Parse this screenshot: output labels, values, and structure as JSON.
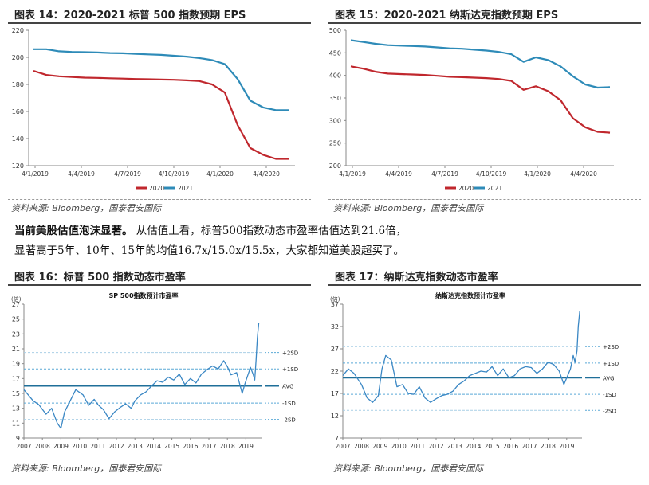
{
  "figures": {
    "f14": {
      "title": "图表 14：2020-2021 标普 500 指数预期 EPS",
      "source": "资料来源: Bloomberg，国泰君安国际"
    },
    "f15": {
      "title": "图表 15：2020-2021 纳斯达克指数预期 EPS",
      "source": "资料来源: Bloomberg，国泰君安国际"
    },
    "f16": {
      "title": "图表 16：标普 500 指数动态市盈率",
      "source": "资料来源: Bloomberg，国泰君安国际"
    },
    "f17": {
      "title": "图表 17：纳斯达克指数动态市盈率",
      "source": "资料来源: Bloomberg，国泰君安国际"
    }
  },
  "paragraph": {
    "lead": "当前美股估值泡沫显著。",
    "line1_rest": "从估值上看，标普500指数动态市盈率估值达到21.6倍，",
    "line2": "显著高于5年、10年、15年的均值16.7x/15.0x/15.5x，大家都知道美股超买了。"
  },
  "chart_data": [
    {
      "id": "f14",
      "type": "line",
      "x_ticks": [
        "4/1/2019",
        "4/4/2019",
        "4/7/2019",
        "4/10/2019",
        "4/1/2020",
        "4/4/2020"
      ],
      "y_ticks": [
        "120",
        "140",
        "160",
        "180",
        "200",
        "220"
      ],
      "ylim": [
        120,
        220
      ],
      "legend": [
        "2020",
        "2021"
      ],
      "series": [
        {
          "name": "2020",
          "color": "#c0272d",
          "values": [
            190,
            187,
            186,
            185.5,
            185,
            184.8,
            184.5,
            184.3,
            184,
            183.8,
            183.6,
            183.4,
            183,
            182.5,
            180,
            174,
            150,
            133,
            128,
            125,
            125
          ]
        },
        {
          "name": "2021",
          "color": "#2e8bb8",
          "values": [
            206,
            206,
            204.5,
            204,
            203.8,
            203.6,
            203.2,
            203,
            202.6,
            202.2,
            201.8,
            201.2,
            200.5,
            199.5,
            198,
            195,
            184,
            168,
            163,
            161,
            161
          ]
        }
      ]
    },
    {
      "id": "f15",
      "type": "line",
      "x_ticks": [
        "4/1/2019",
        "4/4/2019",
        "4/7/2019",
        "4/10/2019",
        "4/1/2020",
        "4/4/2020"
      ],
      "y_ticks": [
        "200",
        "250",
        "300",
        "350",
        "400",
        "450",
        "500"
      ],
      "ylim": [
        200,
        500
      ],
      "legend": [
        "2020",
        "2021"
      ],
      "series": [
        {
          "name": "2020",
          "color": "#c0272d",
          "values": [
            420,
            415,
            408,
            404,
            403,
            402,
            401,
            399,
            397,
            396,
            395,
            394,
            392,
            388,
            368,
            376,
            365,
            345,
            305,
            285,
            275,
            273
          ]
        },
        {
          "name": "2021",
          "color": "#2e8bb8",
          "values": [
            478,
            474,
            470,
            467,
            466,
            465,
            464,
            462,
            460,
            459,
            457,
            455,
            452,
            447,
            430,
            440,
            434,
            420,
            398,
            380,
            373,
            374
          ]
        }
      ]
    },
    {
      "id": "f16",
      "type": "line",
      "title": "SP 500指数预计市盈率",
      "unit": "(倍)",
      "x_ticks": [
        "2007",
        "2008",
        "2009",
        "2010",
        "2011",
        "2012",
        "2013",
        "2014",
        "2015",
        "2016",
        "2017",
        "2018",
        "2019"
      ],
      "y_ticks": [
        "9",
        "11",
        "13",
        "15",
        "17",
        "19",
        "21",
        "23",
        "25",
        "27"
      ],
      "ylim": [
        9,
        27
      ],
      "bands": {
        "plus2": 20.5,
        "plus1": 18.3,
        "avg": 16.0,
        "minus1": 13.7,
        "minus2": 11.5
      },
      "band_labels": [
        "+2SD",
        "+1SD",
        "AVG",
        "-1SD",
        "-2SD"
      ],
      "x": [
        2007.0,
        2007.5,
        2007.8,
        2008.2,
        2008.5,
        2008.8,
        2009.0,
        2009.2,
        2009.5,
        2009.8,
        2010.2,
        2010.5,
        2010.8,
        2011.0,
        2011.3,
        2011.6,
        2011.9,
        2012.2,
        2012.5,
        2012.8,
        2013.0,
        2013.3,
        2013.6,
        2013.9,
        2014.2,
        2014.5,
        2014.8,
        2015.1,
        2015.4,
        2015.7,
        2016.0,
        2016.3,
        2016.6,
        2016.9,
        2017.2,
        2017.5,
        2017.8,
        2018.0,
        2018.2,
        2018.5,
        2018.8,
        2018.95,
        2019.1,
        2019.25,
        2019.4,
        2019.48,
        2019.55,
        2019.62,
        2019.7
      ],
      "values": [
        15.5,
        14.0,
        13.5,
        12.2,
        13.0,
        11.0,
        10.3,
        12.5,
        14.0,
        15.5,
        14.8,
        13.4,
        14.2,
        13.5,
        12.8,
        11.6,
        12.5,
        13.1,
        13.6,
        13.0,
        14.0,
        14.8,
        15.2,
        16.0,
        16.7,
        16.5,
        17.2,
        16.8,
        17.6,
        16.2,
        17.0,
        16.4,
        17.6,
        18.2,
        18.7,
        18.3,
        19.4,
        18.6,
        17.5,
        17.8,
        15.0,
        16.3,
        17.4,
        18.5,
        17.5,
        16.8,
        19.5,
        22.5,
        24.5
      ]
    },
    {
      "id": "f17",
      "type": "line",
      "title": "纳斯达克指数预计市盈率",
      "unit": "(倍)",
      "x_ticks": [
        "2007",
        "2008",
        "2009",
        "2010",
        "2011",
        "2012",
        "2013",
        "2014",
        "2015",
        "2016",
        "2017",
        "2018",
        "2019"
      ],
      "y_ticks": [
        "7",
        "12",
        "17",
        "22",
        "27",
        "32",
        "37"
      ],
      "ylim": [
        7,
        37
      ],
      "bands": {
        "plus2": 27.5,
        "plus1": 23.8,
        "avg": 20.5,
        "minus1": 16.8,
        "minus2": 13.2
      },
      "band_labels": [
        "+2SD",
        "+1SD",
        "AVG",
        "-1SD",
        "-2SD"
      ],
      "x": [
        2007.0,
        2007.3,
        2007.6,
        2008.0,
        2008.3,
        2008.6,
        2008.9,
        2009.1,
        2009.3,
        2009.6,
        2009.9,
        2010.2,
        2010.5,
        2010.8,
        2011.1,
        2011.4,
        2011.7,
        2012.0,
        2012.3,
        2012.6,
        2012.9,
        2013.2,
        2013.5,
        2013.8,
        2014.1,
        2014.4,
        2014.7,
        2015.0,
        2015.3,
        2015.6,
        2015.9,
        2016.2,
        2016.5,
        2016.8,
        2017.1,
        2017.4,
        2017.7,
        2018.0,
        2018.3,
        2018.6,
        2018.85,
        2019.05,
        2019.2,
        2019.35,
        2019.45,
        2019.55,
        2019.62,
        2019.7
      ],
      "values": [
        21.0,
        22.5,
        21.5,
        19.0,
        16.0,
        15.0,
        16.5,
        22.5,
        25.5,
        24.5,
        18.5,
        19.0,
        17.0,
        16.8,
        18.5,
        16.0,
        15.0,
        15.8,
        16.5,
        16.8,
        17.5,
        19.0,
        19.8,
        21.0,
        21.5,
        22.0,
        21.8,
        23.0,
        21.0,
        22.5,
        20.5,
        21.0,
        22.5,
        23.0,
        22.8,
        21.5,
        22.5,
        24.0,
        23.5,
        22.0,
        19.0,
        21.0,
        22.5,
        25.5,
        24.0,
        26.5,
        32.0,
        35.5
      ]
    }
  ]
}
